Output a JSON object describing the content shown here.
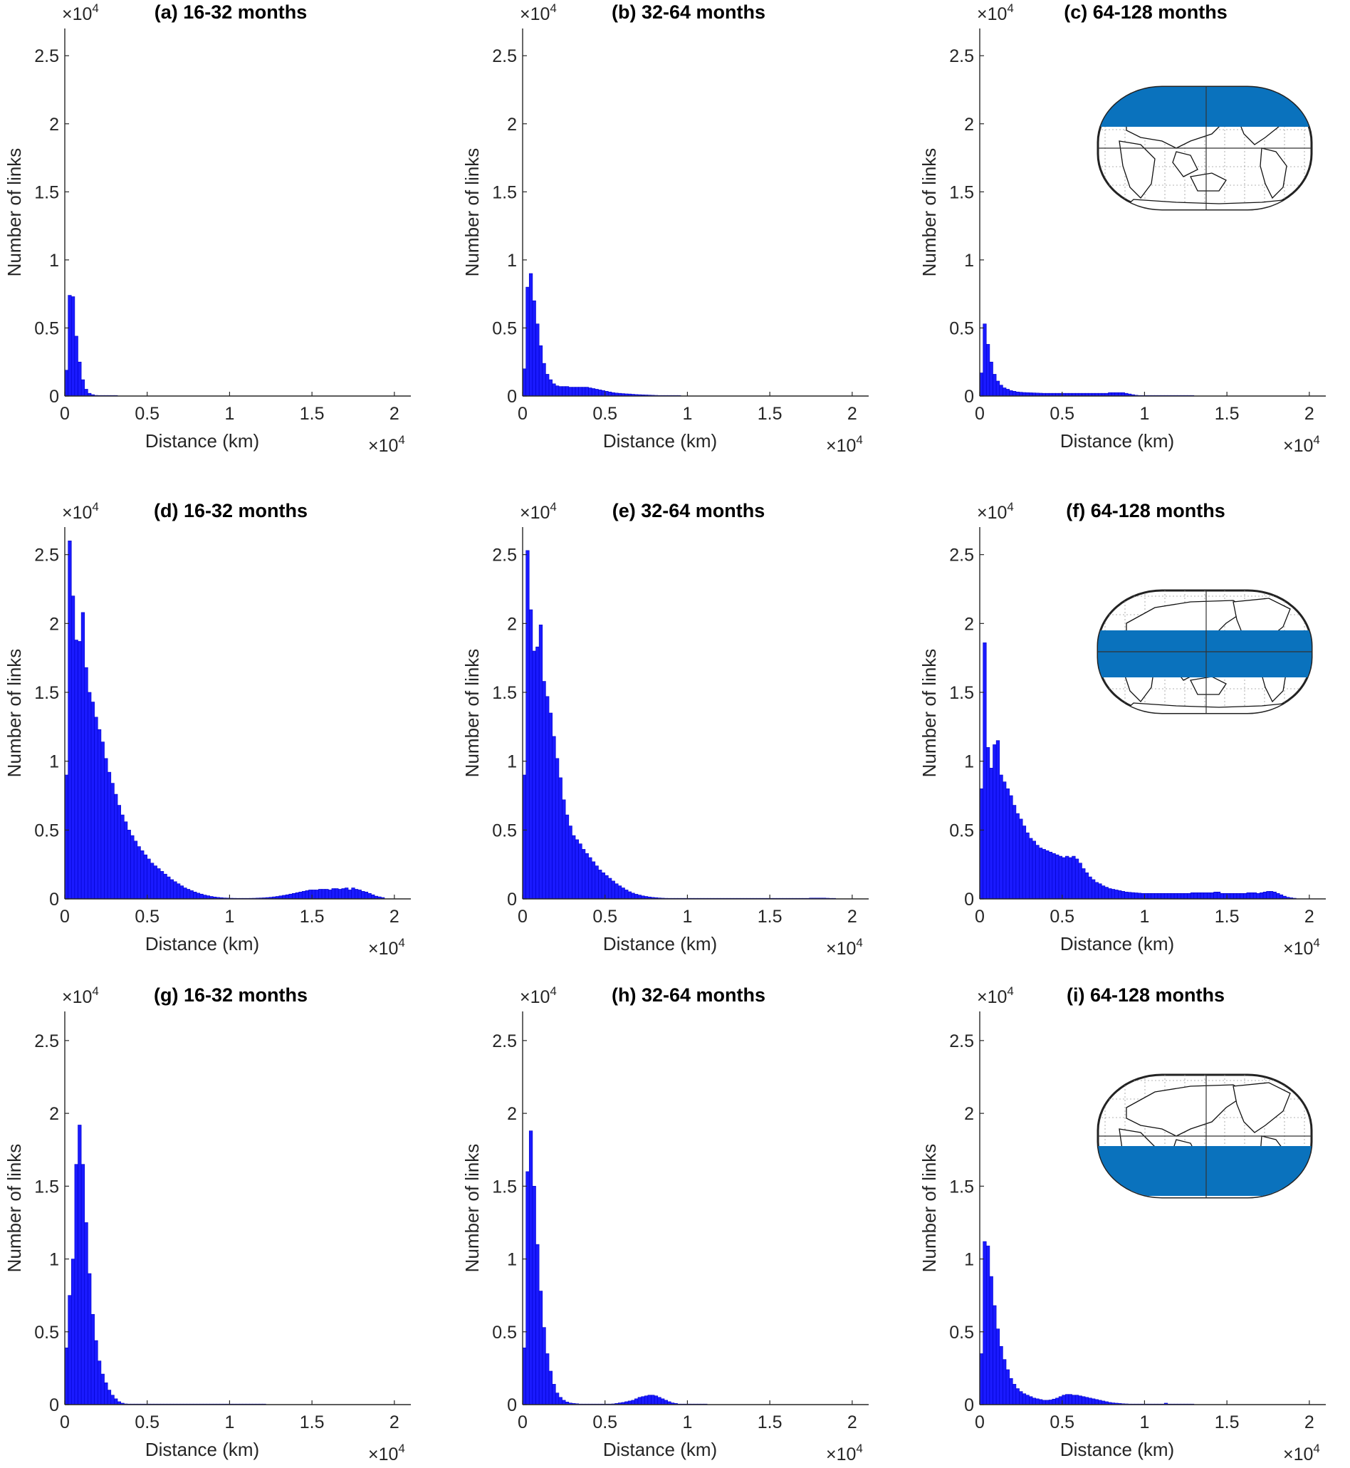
{
  "colors": {
    "bar": "#1a1aff",
    "region": "#0a72bd"
  },
  "chart_data": [
    {
      "panel": "a",
      "type": "bar",
      "title": "(a) 16-32 months",
      "xlabel": "Distance (km)",
      "ylabel": "Number of links",
      "x_multiplier": "×10",
      "x_multiplier_exp": "4",
      "y_multiplier": "×10",
      "y_multiplier_exp": "4",
      "xlim": [
        0,
        21000
      ],
      "ylim": [
        0,
        27000
      ],
      "x_ticks": [
        0,
        5000,
        10000,
        15000,
        20000
      ],
      "x_tick_labels": [
        "0",
        "0.5",
        "1",
        "1.5",
        "2"
      ],
      "y_ticks": [
        0,
        5000,
        10000,
        15000,
        20000,
        25000
      ],
      "y_tick_labels": [
        "0",
        "0.5",
        "1",
        "1.5",
        "2",
        "2.5"
      ],
      "bin_width": 200,
      "x_start": 0,
      "values": [
        1900,
        7400,
        7300,
        4400,
        2500,
        1200,
        500,
        200,
        100,
        50,
        30,
        20,
        10,
        5,
        5,
        0
      ],
      "has_inset": false
    },
    {
      "panel": "b",
      "type": "bar",
      "title": "(b) 32-64 months",
      "xlabel": "Distance (km)",
      "ylabel": "Number of links",
      "x_multiplier": "×10",
      "x_multiplier_exp": "4",
      "y_multiplier": "×10",
      "y_multiplier_exp": "4",
      "xlim": [
        0,
        21000
      ],
      "ylim": [
        0,
        27000
      ],
      "x_ticks": [
        0,
        5000,
        10000,
        15000,
        20000
      ],
      "x_tick_labels": [
        "0",
        "0.5",
        "1",
        "1.5",
        "2"
      ],
      "y_ticks": [
        0,
        5000,
        10000,
        15000,
        20000,
        25000
      ],
      "y_tick_labels": [
        "0",
        "0.5",
        "1",
        "1.5",
        "2",
        "2.5"
      ],
      "bin_width": 200,
      "x_start": 0,
      "values": [
        2000,
        8000,
        9000,
        7000,
        5300,
        3700,
        2400,
        1600,
        1200,
        900,
        750,
        700,
        700,
        700,
        650,
        650,
        650,
        650,
        650,
        650,
        600,
        550,
        500,
        450,
        400,
        350,
        300,
        250,
        220,
        200,
        180,
        160,
        150,
        130,
        110,
        100,
        90,
        80,
        70,
        60,
        50,
        40,
        35,
        30,
        25,
        20,
        15,
        10
      ],
      "has_inset": false
    },
    {
      "panel": "c",
      "type": "bar",
      "title": "(c) 64-128 months",
      "xlabel": "Distance (km)",
      "ylabel": "Number of links",
      "x_multiplier": "×10",
      "x_multiplier_exp": "4",
      "y_multiplier": "×10",
      "y_multiplier_exp": "4",
      "xlim": [
        0,
        21000
      ],
      "ylim": [
        0,
        27000
      ],
      "x_ticks": [
        0,
        5000,
        10000,
        15000,
        20000
      ],
      "x_tick_labels": [
        "0",
        "0.5",
        "1",
        "1.5",
        "2"
      ],
      "y_ticks": [
        0,
        5000,
        10000,
        15000,
        20000,
        25000
      ],
      "y_tick_labels": [
        "0",
        "0.5",
        "1",
        "1.5",
        "2",
        "2.5"
      ],
      "bin_width": 200,
      "x_start": 0,
      "values": [
        1700,
        5300,
        3800,
        2500,
        1600,
        1100,
        800,
        600,
        500,
        400,
        350,
        300,
        280,
        260,
        250,
        240,
        230,
        220,
        210,
        200,
        200,
        200,
        200,
        200,
        200,
        200,
        200,
        200,
        200,
        200,
        200,
        200,
        200,
        200,
        200,
        200,
        200,
        200,
        200,
        250,
        250,
        250,
        250,
        250,
        200,
        150,
        100,
        60,
        40,
        30,
        20,
        15,
        10,
        10,
        10,
        10,
        10,
        10,
        10,
        10,
        10,
        10,
        10,
        5,
        5
      ],
      "has_inset": true,
      "inset_region": "north"
    },
    {
      "panel": "d",
      "type": "bar",
      "title": "(d) 16-32 months",
      "xlabel": "Distance (km)",
      "ylabel": "Number of links",
      "x_multiplier": "×10",
      "x_multiplier_exp": "4",
      "y_multiplier": "×10",
      "y_multiplier_exp": "4",
      "xlim": [
        0,
        21000
      ],
      "ylim": [
        0,
        27000
      ],
      "x_ticks": [
        0,
        5000,
        10000,
        15000,
        20000
      ],
      "x_tick_labels": [
        "0",
        "0.5",
        "1",
        "1.5",
        "2"
      ],
      "y_ticks": [
        0,
        5000,
        10000,
        15000,
        20000,
        25000
      ],
      "y_tick_labels": [
        "0",
        "0.5",
        "1",
        "1.5",
        "2",
        "2.5"
      ],
      "bin_width": 200,
      "x_start": 0,
      "values": [
        9000,
        26000,
        22000,
        18800,
        18700,
        20800,
        16800,
        15000,
        14300,
        13200,
        12300,
        11400,
        10200,
        9200,
        8400,
        7600,
        6800,
        6100,
        5600,
        5000,
        4600,
        4200,
        3800,
        3500,
        3200,
        2900,
        2600,
        2400,
        2200,
        2000,
        1800,
        1600,
        1400,
        1250,
        1100,
        950,
        800,
        700,
        600,
        500,
        420,
        350,
        280,
        230,
        180,
        140,
        110,
        90,
        70,
        60,
        50,
        45,
        40,
        40,
        40,
        40,
        45,
        50,
        60,
        70,
        80,
        100,
        120,
        150,
        180,
        220,
        260,
        300,
        350,
        400,
        450,
        500,
        550,
        600,
        650,
        650,
        650,
        700,
        700,
        700,
        650,
        750,
        750,
        700,
        750,
        800,
        650,
        800,
        700,
        650,
        550,
        500,
        400,
        300,
        200,
        150,
        100
      ],
      "has_inset": false
    },
    {
      "panel": "e",
      "type": "bar",
      "title": "(e) 32-64 months",
      "xlabel": "Distance (km)",
      "ylabel": "Number of links",
      "x_multiplier": "×10",
      "x_multiplier_exp": "4",
      "y_multiplier": "×10",
      "y_multiplier_exp": "4",
      "xlim": [
        0,
        21000
      ],
      "ylim": [
        0,
        27000
      ],
      "x_ticks": [
        0,
        5000,
        10000,
        15000,
        20000
      ],
      "x_tick_labels": [
        "0",
        "0.5",
        "1",
        "1.5",
        "2"
      ],
      "y_ticks": [
        0,
        5000,
        10000,
        15000,
        20000,
        25000
      ],
      "y_tick_labels": [
        "0",
        "0.5",
        "1",
        "1.5",
        "2",
        "2.5"
      ],
      "bin_width": 200,
      "x_start": 0,
      "values": [
        9000,
        25300,
        21000,
        18000,
        18300,
        19900,
        15800,
        14700,
        13500,
        11800,
        10200,
        8800,
        7200,
        6100,
        5300,
        4600,
        4300,
        4000,
        3600,
        3300,
        3000,
        2700,
        2400,
        2100,
        1900,
        1700,
        1500,
        1300,
        1100,
        950,
        800,
        650,
        520,
        420,
        340,
        280,
        220,
        180,
        140,
        110,
        90,
        70,
        55,
        45,
        35,
        30,
        25,
        20,
        20,
        20,
        20,
        20,
        20,
        20,
        20,
        20,
        20,
        20,
        20,
        20,
        20,
        20,
        20,
        20,
        20,
        20,
        20,
        20,
        20,
        20,
        20,
        20,
        20,
        20,
        20,
        20,
        20,
        20,
        20,
        20,
        20,
        20,
        20,
        20,
        20,
        20,
        40,
        60,
        60,
        60,
        60,
        60,
        50,
        40,
        30
      ],
      "has_inset": false
    },
    {
      "panel": "f",
      "type": "bar",
      "title": "(f) 64-128 months",
      "xlabel": "Distance (km)",
      "ylabel": "Number of links",
      "x_multiplier": "×10",
      "x_multiplier_exp": "4",
      "y_multiplier": "×10",
      "y_multiplier_exp": "4",
      "xlim": [
        0,
        21000
      ],
      "ylim": [
        0,
        27000
      ],
      "x_ticks": [
        0,
        5000,
        10000,
        15000,
        20000
      ],
      "x_tick_labels": [
        "0",
        "0.5",
        "1",
        "1.5",
        "2"
      ],
      "y_ticks": [
        0,
        5000,
        10000,
        15000,
        20000,
        25000
      ],
      "y_tick_labels": [
        "0",
        "0.5",
        "1",
        "1.5",
        "2",
        "2.5"
      ],
      "bin_width": 200,
      "x_start": 0,
      "values": [
        8000,
        18600,
        11000,
        9500,
        11200,
        11500,
        9000,
        8500,
        8000,
        7500,
        6800,
        6200,
        5800,
        5300,
        4800,
        4400,
        4200,
        3900,
        3700,
        3600,
        3500,
        3400,
        3300,
        3200,
        3100,
        3000,
        3100,
        3000,
        3100,
        2900,
        2600,
        2200,
        1900,
        1600,
        1400,
        1200,
        1100,
        950,
        850,
        750,
        700,
        650,
        600,
        550,
        500,
        480,
        460,
        440,
        420,
        400,
        400,
        400,
        400,
        400,
        400,
        400,
        400,
        400,
        400,
        400,
        400,
        400,
        400,
        400,
        450,
        450,
        450,
        450,
        450,
        450,
        450,
        500,
        500,
        400,
        400,
        400,
        400,
        400,
        400,
        400,
        400,
        450,
        450,
        450,
        400,
        450,
        500,
        550,
        550,
        500,
        400,
        300,
        200,
        120,
        80,
        50
      ],
      "has_inset": true,
      "inset_region": "tropics"
    },
    {
      "panel": "g",
      "type": "bar",
      "title": "(g) 16-32 months",
      "xlabel": "Distance (km)",
      "ylabel": "Number of links",
      "x_multiplier": "×10",
      "x_multiplier_exp": "4",
      "y_multiplier": "×10",
      "y_multiplier_exp": "4",
      "xlim": [
        0,
        21000
      ],
      "ylim": [
        0,
        27000
      ],
      "x_ticks": [
        0,
        5000,
        10000,
        15000,
        20000
      ],
      "x_tick_labels": [
        "0",
        "0.5",
        "1",
        "1.5",
        "2"
      ],
      "y_ticks": [
        0,
        5000,
        10000,
        15000,
        20000,
        25000
      ],
      "y_tick_labels": [
        "0",
        "0.5",
        "1",
        "1.5",
        "2",
        "2.5"
      ],
      "bin_width": 200,
      "x_start": 0,
      "values": [
        3900,
        7500,
        10000,
        16500,
        19200,
        16500,
        12500,
        9000,
        6200,
        4400,
        3000,
        2100,
        1500,
        1000,
        650,
        400,
        200,
        100,
        50,
        30,
        20,
        15,
        10,
        10,
        10,
        10,
        10,
        10,
        10,
        10,
        10,
        10,
        10,
        10,
        10,
        10,
        10,
        10,
        10,
        10,
        10,
        10,
        10,
        10,
        10,
        10,
        10,
        10,
        10,
        10,
        10,
        10,
        10,
        10,
        10,
        10,
        10,
        10,
        10,
        10,
        5
      ],
      "has_inset": false
    },
    {
      "panel": "h",
      "type": "bar",
      "title": "(h) 32-64 months",
      "xlabel": "Distance (km)",
      "ylabel": "Number of links",
      "x_multiplier": "×10",
      "x_multiplier_exp": "4",
      "y_multiplier": "×10",
      "y_multiplier_exp": "4",
      "xlim": [
        0,
        21000
      ],
      "ylim": [
        0,
        27000
      ],
      "x_ticks": [
        0,
        5000,
        10000,
        15000,
        20000
      ],
      "x_tick_labels": [
        "0",
        "0.5",
        "1",
        "1.5",
        "2"
      ],
      "y_ticks": [
        0,
        5000,
        10000,
        15000,
        20000,
        25000
      ],
      "y_tick_labels": [
        "0",
        "0.5",
        "1",
        "1.5",
        "2",
        "2.5"
      ],
      "bin_width": 200,
      "x_start": 0,
      "values": [
        3900,
        16000,
        18800,
        15000,
        11000,
        7800,
        5300,
        3500,
        2300,
        1400,
        800,
        500,
        300,
        180,
        110,
        80,
        60,
        40,
        30,
        25,
        20,
        20,
        20,
        20,
        20,
        20,
        30,
        50,
        80,
        120,
        150,
        200,
        250,
        300,
        400,
        500,
        550,
        600,
        650,
        650,
        600,
        500,
        400,
        300,
        200,
        120,
        80,
        40,
        20,
        10,
        10,
        10,
        10,
        10,
        10,
        10
      ],
      "has_inset": false
    },
    {
      "panel": "i",
      "type": "bar",
      "title": "(i) 64-128 months",
      "xlabel": "Distance (km)",
      "ylabel": "Number of links",
      "x_multiplier": "×10",
      "x_multiplier_exp": "4",
      "y_multiplier": "×10",
      "y_multiplier_exp": "4",
      "xlim": [
        0,
        21000
      ],
      "ylim": [
        0,
        27000
      ],
      "x_ticks": [
        0,
        5000,
        10000,
        15000,
        20000
      ],
      "x_tick_labels": [
        "0",
        "0.5",
        "1",
        "1.5",
        "2"
      ],
      "y_ticks": [
        0,
        5000,
        10000,
        15000,
        20000,
        25000
      ],
      "y_tick_labels": [
        "0",
        "0.5",
        "1",
        "1.5",
        "2",
        "2.5"
      ],
      "bin_width": 200,
      "x_start": 0,
      "values": [
        3500,
        11200,
        10900,
        8800,
        6800,
        5200,
        4000,
        3100,
        2400,
        1800,
        1400,
        1100,
        900,
        750,
        650,
        550,
        450,
        400,
        350,
        300,
        300,
        320,
        380,
        450,
        550,
        650,
        700,
        700,
        650,
        650,
        600,
        550,
        500,
        450,
        400,
        350,
        300,
        250,
        200,
        150,
        120,
        100,
        80,
        60,
        50,
        40,
        30,
        20,
        20,
        20,
        20,
        20,
        20,
        20,
        20,
        20,
        100,
        20,
        20,
        20,
        20,
        10,
        10,
        10,
        10
      ],
      "has_inset": true,
      "inset_region": "south"
    }
  ]
}
